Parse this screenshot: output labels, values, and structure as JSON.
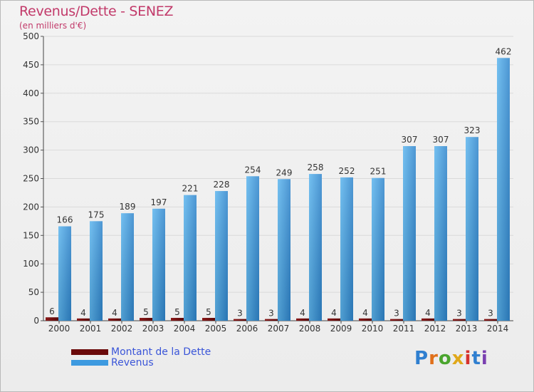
{
  "header": {
    "title": "Revenus/Dette - SENEZ",
    "subtitle": "(en milliers d'€)"
  },
  "logo": {
    "text": "Proxiti"
  },
  "colors": {
    "debt": "#6b0a0a",
    "revenue": "#3d9ae0",
    "text": "#c23a6a",
    "legend_text": "#3a55d8"
  },
  "chart_data": {
    "type": "bar",
    "title": "Revenus/Dette - SENEZ",
    "ylabel": "(en milliers d'€)",
    "ylim": [
      0,
      500
    ],
    "yticks": [
      0,
      50,
      100,
      150,
      200,
      250,
      300,
      350,
      400,
      450,
      500
    ],
    "grid": true,
    "legend_position": "bottom-left",
    "categories": [
      "2000",
      "2001",
      "2002",
      "2003",
      "2004",
      "2005",
      "2006",
      "2007",
      "2008",
      "2009",
      "2010",
      "2011",
      "2012",
      "2013",
      "2014"
    ],
    "series": [
      {
        "name": "Montant de la Dette",
        "values": [
          6,
          4,
          4,
          5,
          5,
          5,
          3,
          3,
          4,
          4,
          4,
          3,
          4,
          3,
          3
        ]
      },
      {
        "name": "Revenus",
        "values": [
          166,
          175,
          189,
          197,
          221,
          228,
          254,
          249,
          258,
          252,
          251,
          307,
          307,
          323,
          462
        ]
      }
    ]
  }
}
